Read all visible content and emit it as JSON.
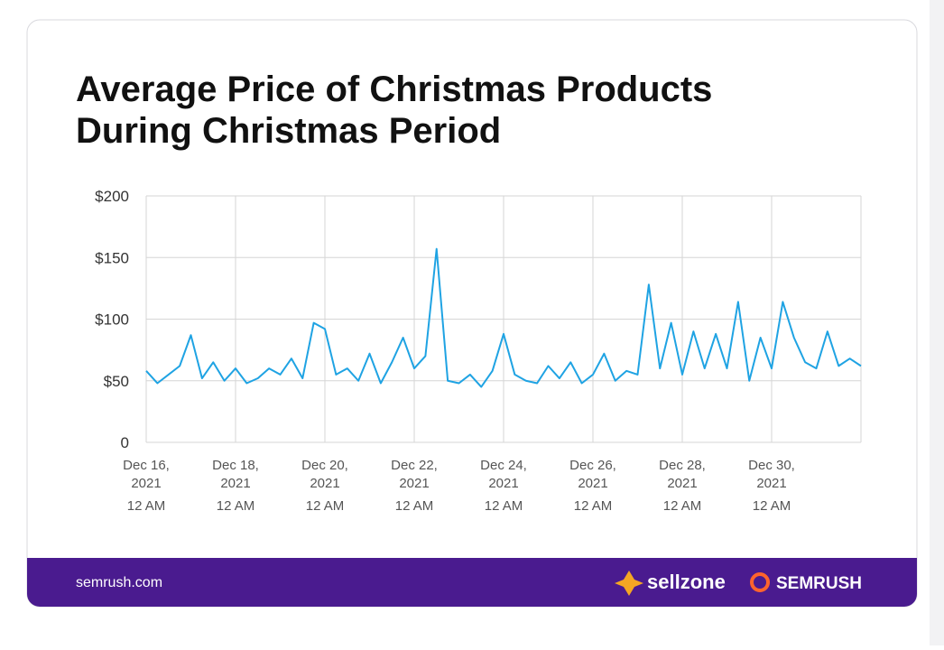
{
  "chart_data": {
    "type": "line",
    "title": [
      "Average Price of Christmas Products",
      "During Christmas Period"
    ],
    "x": [
      "2021-12-16T00:00",
      "2021-12-16T06:00",
      "2021-12-16T12:00",
      "2021-12-16T18:00",
      "2021-12-17T00:00",
      "2021-12-17T06:00",
      "2021-12-17T12:00",
      "2021-12-17T18:00",
      "2021-12-18T00:00",
      "2021-12-18T06:00",
      "2021-12-18T12:00",
      "2021-12-18T18:00",
      "2021-12-19T00:00",
      "2021-12-19T06:00",
      "2021-12-19T12:00",
      "2021-12-19T18:00",
      "2021-12-20T00:00",
      "2021-12-20T06:00",
      "2021-12-20T12:00",
      "2021-12-20T18:00",
      "2021-12-21T00:00",
      "2021-12-21T06:00",
      "2021-12-21T12:00",
      "2021-12-21T18:00",
      "2021-12-22T00:00",
      "2021-12-22T06:00",
      "2021-12-22T12:00",
      "2021-12-22T18:00",
      "2021-12-23T00:00",
      "2021-12-23T06:00",
      "2021-12-23T12:00",
      "2021-12-23T18:00",
      "2021-12-24T00:00",
      "2021-12-24T06:00",
      "2021-12-24T12:00",
      "2021-12-24T18:00",
      "2021-12-25T00:00",
      "2021-12-25T06:00",
      "2021-12-25T12:00",
      "2021-12-25T18:00",
      "2021-12-26T00:00",
      "2021-12-26T06:00",
      "2021-12-26T12:00",
      "2021-12-26T18:00",
      "2021-12-27T00:00",
      "2021-12-27T06:00",
      "2021-12-27T12:00",
      "2021-12-27T18:00",
      "2021-12-28T00:00",
      "2021-12-28T06:00",
      "2021-12-28T12:00",
      "2021-12-28T18:00",
      "2021-12-29T00:00",
      "2021-12-29T06:00",
      "2021-12-29T12:00",
      "2021-12-29T18:00",
      "2021-12-30T00:00",
      "2021-12-30T06:00",
      "2021-12-30T12:00",
      "2021-12-30T18:00",
      "2021-12-31T00:00",
      "2021-12-31T06:00",
      "2021-12-31T12:00",
      "2021-12-31T18:00",
      "2022-01-01T00:00"
    ],
    "series": [
      {
        "color": "#1fa3e3",
        "values": [
          58,
          48,
          55,
          62,
          87,
          52,
          65,
          50,
          60,
          48,
          52,
          60,
          55,
          68,
          52,
          97,
          92,
          55,
          60,
          50,
          72,
          48,
          65,
          85,
          60,
          70,
          157,
          50,
          48,
          55,
          45,
          58,
          88,
          55,
          50,
          48,
          62,
          52,
          65,
          48,
          55,
          72,
          50,
          58,
          55,
          128,
          60,
          97,
          55,
          90,
          60,
          88,
          60,
          114,
          50,
          85,
          60,
          114,
          85,
          65,
          60,
          90,
          62,
          68,
          62
        ]
      }
    ],
    "xlim": [
      "2021-12-16T00:00",
      "2022-01-01T00:00"
    ],
    "xticks": [
      {
        "value": "2021-12-16T00:00",
        "label": [
          "Dec 16,",
          "2021",
          "12 AM"
        ]
      },
      {
        "value": "2021-12-18T00:00",
        "label": [
          "Dec 18,",
          "2021",
          "12 AM"
        ]
      },
      {
        "value": "2021-12-20T00:00",
        "label": [
          "Dec 20,",
          "2021",
          "12 AM"
        ]
      },
      {
        "value": "2021-12-22T00:00",
        "label": [
          "Dec 22,",
          "2021",
          "12 AM"
        ]
      },
      {
        "value": "2021-12-24T00:00",
        "label": [
          "Dec 24,",
          "2021",
          "12 AM"
        ]
      },
      {
        "value": "2021-12-26T00:00",
        "label": [
          "Dec 26,",
          "2021",
          "12 AM"
        ]
      },
      {
        "value": "2021-12-28T00:00",
        "label": [
          "Dec 28,",
          "2021",
          "12 AM"
        ]
      },
      {
        "value": "2021-12-30T00:00",
        "label": [
          "Dec 30,",
          "2021",
          "12 AM"
        ]
      }
    ],
    "ylim": [
      0,
      200
    ],
    "yticks": [
      0,
      {
        "value": 50,
        "label": "$50"
      },
      {
        "value": 100,
        "label": "$100"
      },
      {
        "value": 150,
        "label": "$150"
      },
      {
        "value": 200,
        "label": "$200"
      }
    ],
    "grid": true
  },
  "footer": {
    "source": "semrush.com",
    "brands": [
      "sellzone",
      "SEMRUSH"
    ]
  }
}
